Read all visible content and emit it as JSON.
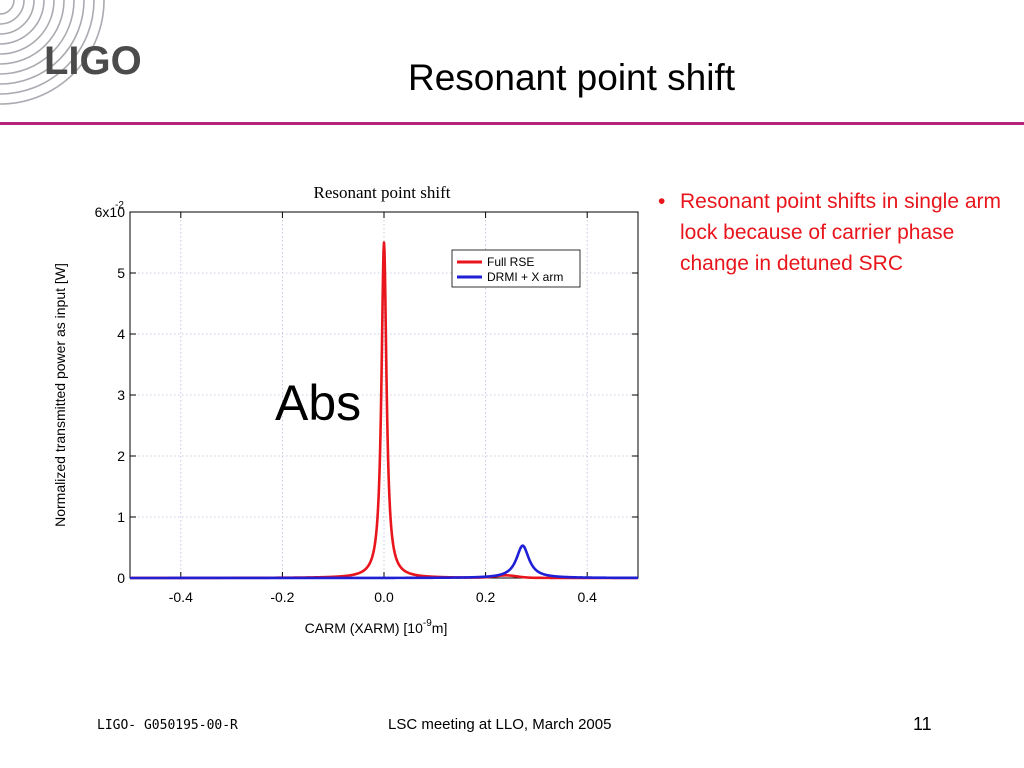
{
  "header": {
    "logo_text": "LIGO",
    "title": "Resonant point shift"
  },
  "chart_data": {
    "type": "line",
    "title": "Resonant point shift",
    "xlabel": "CARM (XARM) [10",
    "xlabel_sup": "-9",
    "xlabel_suffix": "m]",
    "ylabel": "Normalized transmitted power as input [W]",
    "xlim": [
      -0.5,
      0.5
    ],
    "ylim": [
      0,
      0.06
    ],
    "x_ticks": [
      -0.4,
      -0.2,
      0.0,
      0.2,
      0.4
    ],
    "x_tick_labels": [
      "-0.4",
      "-0.2",
      "0.0",
      "0.2",
      "0.4"
    ],
    "y_ticks": [
      0,
      1,
      2,
      3,
      4,
      5,
      6
    ],
    "y_tick_labels": [
      "0",
      "1",
      "2",
      "3",
      "4",
      "5",
      "6x10"
    ],
    "y_exponent_label": "-2",
    "grid": true,
    "legend_position": "top-right",
    "annotation": "Abs",
    "series": [
      {
        "name": "Full RSE",
        "color": "#e8161c",
        "peak_x": 0.0,
        "peak_y": 0.055,
        "half_width": 0.006,
        "x": [
          -0.5,
          -0.3,
          -0.1,
          -0.06,
          -0.04,
          -0.03,
          -0.02,
          -0.015,
          -0.01,
          -0.007,
          -0.005,
          -0.003,
          -0.001,
          0.0,
          0.001,
          0.003,
          0.005,
          0.007,
          0.01,
          0.015,
          0.02,
          0.03,
          0.04,
          0.06,
          0.1,
          0.2,
          0.24,
          0.26,
          0.28,
          0.3,
          0.5
        ],
        "y": [
          8e-05,
          0.00022,
          0.0002,
          0.00055,
          0.0012,
          0.0021,
          0.0045,
          0.0076,
          0.0147,
          0.0233,
          0.0323,
          0.0441,
          0.0536,
          0.055,
          0.0536,
          0.0441,
          0.0323,
          0.0233,
          0.0147,
          0.0076,
          0.0045,
          0.0021,
          0.0012,
          0.00055,
          0.0002,
          0.0004,
          0.0006,
          0.0004,
          0.0003,
          0.0002,
          6e-05
        ]
      },
      {
        "name": "DRMI + X arm",
        "color": "#1f1fd6",
        "peak_x": 0.273,
        "peak_y": 0.0053,
        "half_width": 0.015,
        "x": [
          -0.5,
          -0.2,
          0.0,
          0.1,
          0.18,
          0.22,
          0.24,
          0.25,
          0.26,
          0.268,
          0.273,
          0.278,
          0.286,
          0.296,
          0.306,
          0.326,
          0.36,
          0.42,
          0.5
        ],
        "y": [
          5e-05,
          8e-05,
          0.00012,
          0.0002,
          0.0006,
          0.0013,
          0.0023,
          0.0031,
          0.0044,
          0.0051,
          0.0053,
          0.0051,
          0.0044,
          0.0031,
          0.0023,
          0.0013,
          0.0006,
          0.00025,
          0.0001
        ]
      }
    ]
  },
  "bullets": [
    "Resonant point shifts in single arm lock because of carrier phase change in detuned SRC"
  ],
  "footer": {
    "document_id": "LIGO- G050195-00-R",
    "meeting": "LSC meeting at LLO, March 2005",
    "page_number": "11"
  }
}
